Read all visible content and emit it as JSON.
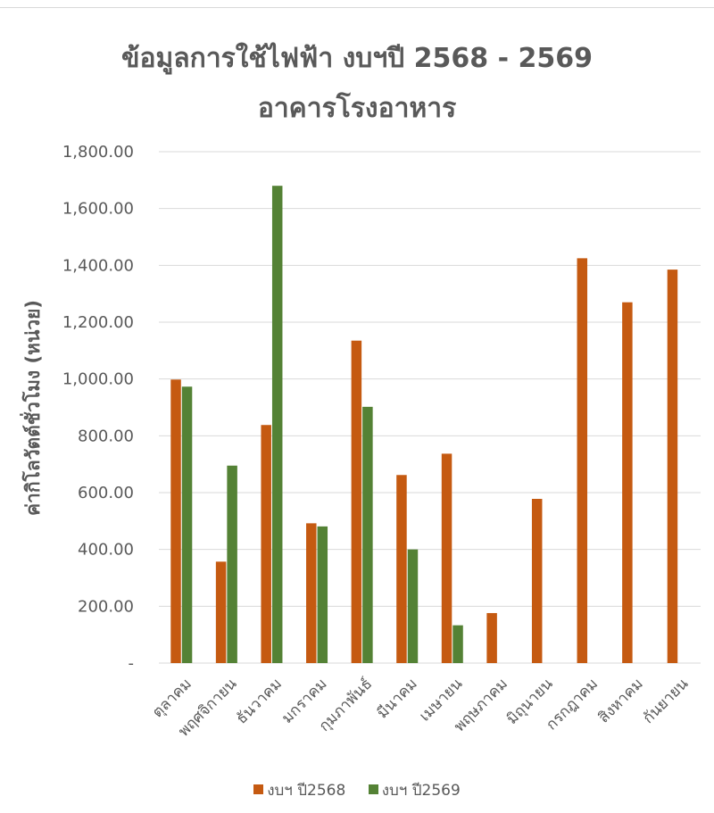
{
  "chart_data": {
    "type": "bar",
    "title": "ข้อมูลการใช้ไฟฟ้า งบฯปี 2568 - 2569",
    "subtitle": "อาคารโรงอาหาร",
    "ylabel": "ค่ากิโลวัตต์ชั่วโมง (หน่วย)",
    "xlabel": "",
    "ylim": [
      0,
      1800
    ],
    "yticks": [
      {
        "value": 0,
        "label": "-"
      },
      {
        "value": 200,
        "label": "200.00"
      },
      {
        "value": 400,
        "label": "400.00"
      },
      {
        "value": 600,
        "label": "600.00"
      },
      {
        "value": 800,
        "label": "800.00"
      },
      {
        "value": 1000,
        "label": "1,000.00"
      },
      {
        "value": 1200,
        "label": "1,200.00"
      },
      {
        "value": 1400,
        "label": "1,400.00"
      },
      {
        "value": 1600,
        "label": "1,600.00"
      },
      {
        "value": 1800,
        "label": "1,800.00"
      }
    ],
    "grid": true,
    "legend_position": "bottom",
    "categories": [
      "ตุลาคม",
      "พฤศจิกายน",
      "ธันวาคม",
      "มกราคม",
      "กุมภาพันธ์",
      "มีนาคม",
      "เมษายน",
      "พฤษภาคม",
      "มิถุนายน",
      "กรกฎาคม",
      "สิงหาคม",
      "กันยายน"
    ],
    "series": [
      {
        "name": "งบฯ ปี2568",
        "color": "#c55a11",
        "values": [
          998,
          357,
          838,
          492,
          1135,
          662,
          737,
          176,
          578,
          1425,
          1270,
          1385
        ]
      },
      {
        "name": "งบฯ ปี2569",
        "color": "#548235",
        "values": [
          973,
          695,
          1680,
          481,
          902,
          400,
          133,
          null,
          null,
          null,
          null,
          null
        ]
      }
    ]
  }
}
